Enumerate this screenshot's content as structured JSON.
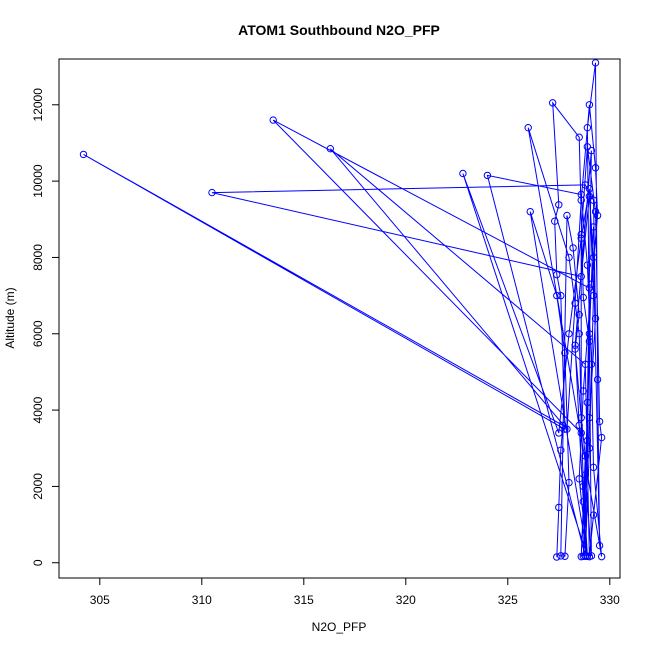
{
  "chart_data": {
    "type": "scatter",
    "title": "ATOM1 Southbound N2O_PFP",
    "xlabel": "N2O_PFP",
    "ylabel": "Altitude (m)",
    "xlim": [
      303,
      330.5
    ],
    "ylim": [
      -400,
      13200
    ],
    "x_ticks": [
      305,
      310,
      315,
      320,
      325,
      330
    ],
    "y_ticks": [
      0,
      2000,
      4000,
      6000,
      8000,
      10000,
      12000
    ],
    "grid": false,
    "legend": "none",
    "series": [
      {
        "color": "#0000ff",
        "marker": "open-circle",
        "connected": true,
        "points": [
          [
            327.4,
            150
          ],
          [
            327.5,
            1450
          ],
          [
            327.6,
            2950
          ],
          [
            327.7,
            3600
          ],
          [
            304.2,
            10700
          ],
          [
            327.8,
            3500
          ],
          [
            327.6,
            7000
          ],
          [
            327.4,
            7550
          ],
          [
            327.3,
            8950
          ],
          [
            327.5,
            9380
          ],
          [
            327.2,
            12050
          ],
          [
            328.5,
            11150
          ],
          [
            328.7,
            6950
          ],
          [
            329.0,
            5800
          ],
          [
            328.8,
            2300
          ],
          [
            329.1,
            180
          ],
          [
            328.9,
            11400
          ],
          [
            329.3,
            13100
          ],
          [
            329.4,
            4800
          ],
          [
            329.5,
            450
          ],
          [
            329.2,
            8000
          ],
          [
            329.0,
            9600
          ],
          [
            328.6,
            7500
          ],
          [
            310.5,
            9700
          ],
          [
            328.8,
            9900
          ],
          [
            329.2,
            9500
          ],
          [
            329.3,
            6400
          ],
          [
            329.0,
            3800
          ],
          [
            328.7,
            170
          ],
          [
            328.9,
            4200
          ],
          [
            329.1,
            10800
          ],
          [
            328.3,
            5700
          ],
          [
            328.5,
            3600
          ],
          [
            328.7,
            1600
          ],
          [
            328.8,
            170
          ],
          [
            329.0,
            7200
          ],
          [
            313.5,
            11600
          ],
          [
            328.6,
            3400
          ],
          [
            328.6,
            8600
          ],
          [
            328.9,
            10900
          ],
          [
            329.3,
            9200
          ],
          [
            329.5,
            3700
          ],
          [
            329.6,
            3280
          ],
          [
            329.2,
            1250
          ],
          [
            329.0,
            160
          ],
          [
            328.8,
            5200
          ],
          [
            316.3,
            10850
          ],
          [
            327.9,
            3500
          ],
          [
            328.3,
            6800
          ],
          [
            328.6,
            9500
          ],
          [
            329.0,
            12000
          ],
          [
            329.3,
            10350
          ],
          [
            329.4,
            9100
          ],
          [
            329.1,
            7300
          ],
          [
            328.7,
            4500
          ],
          [
            328.5,
            2200
          ],
          [
            328.9,
            170
          ],
          [
            322.8,
            10200
          ],
          [
            327.5,
            3400
          ],
          [
            328.0,
            6000
          ],
          [
            328.6,
            8500
          ],
          [
            329.0,
            9800
          ],
          [
            329.2,
            7000
          ],
          [
            329.0,
            3000
          ],
          [
            328.8,
            180
          ],
          [
            324.0,
            10150
          ],
          [
            328.6,
            9650
          ],
          [
            328.9,
            7800
          ],
          [
            329.1,
            5200
          ],
          [
            329.2,
            2500
          ],
          [
            329.6,
            160
          ],
          [
            326.0,
            11400
          ],
          [
            328.0,
            8000
          ],
          [
            328.5,
            6000
          ],
          [
            328.7,
            2000
          ],
          [
            328.9,
            170
          ],
          [
            326.1,
            9200
          ],
          [
            327.4,
            7000
          ],
          [
            327.8,
            5500
          ],
          [
            328.0,
            2100
          ],
          [
            327.8,
            170
          ],
          [
            327.6,
            180
          ],
          [
            327.9,
            9100
          ],
          [
            328.2,
            8250
          ],
          [
            328.5,
            6500
          ],
          [
            328.3,
            5600
          ],
          [
            328.6,
            3800
          ],
          [
            328.8,
            2800
          ],
          [
            328.6,
            160
          ],
          [
            328.9,
            3200
          ],
          [
            329.0,
            6000
          ],
          [
            329.2,
            8800
          ]
        ]
      }
    ]
  }
}
